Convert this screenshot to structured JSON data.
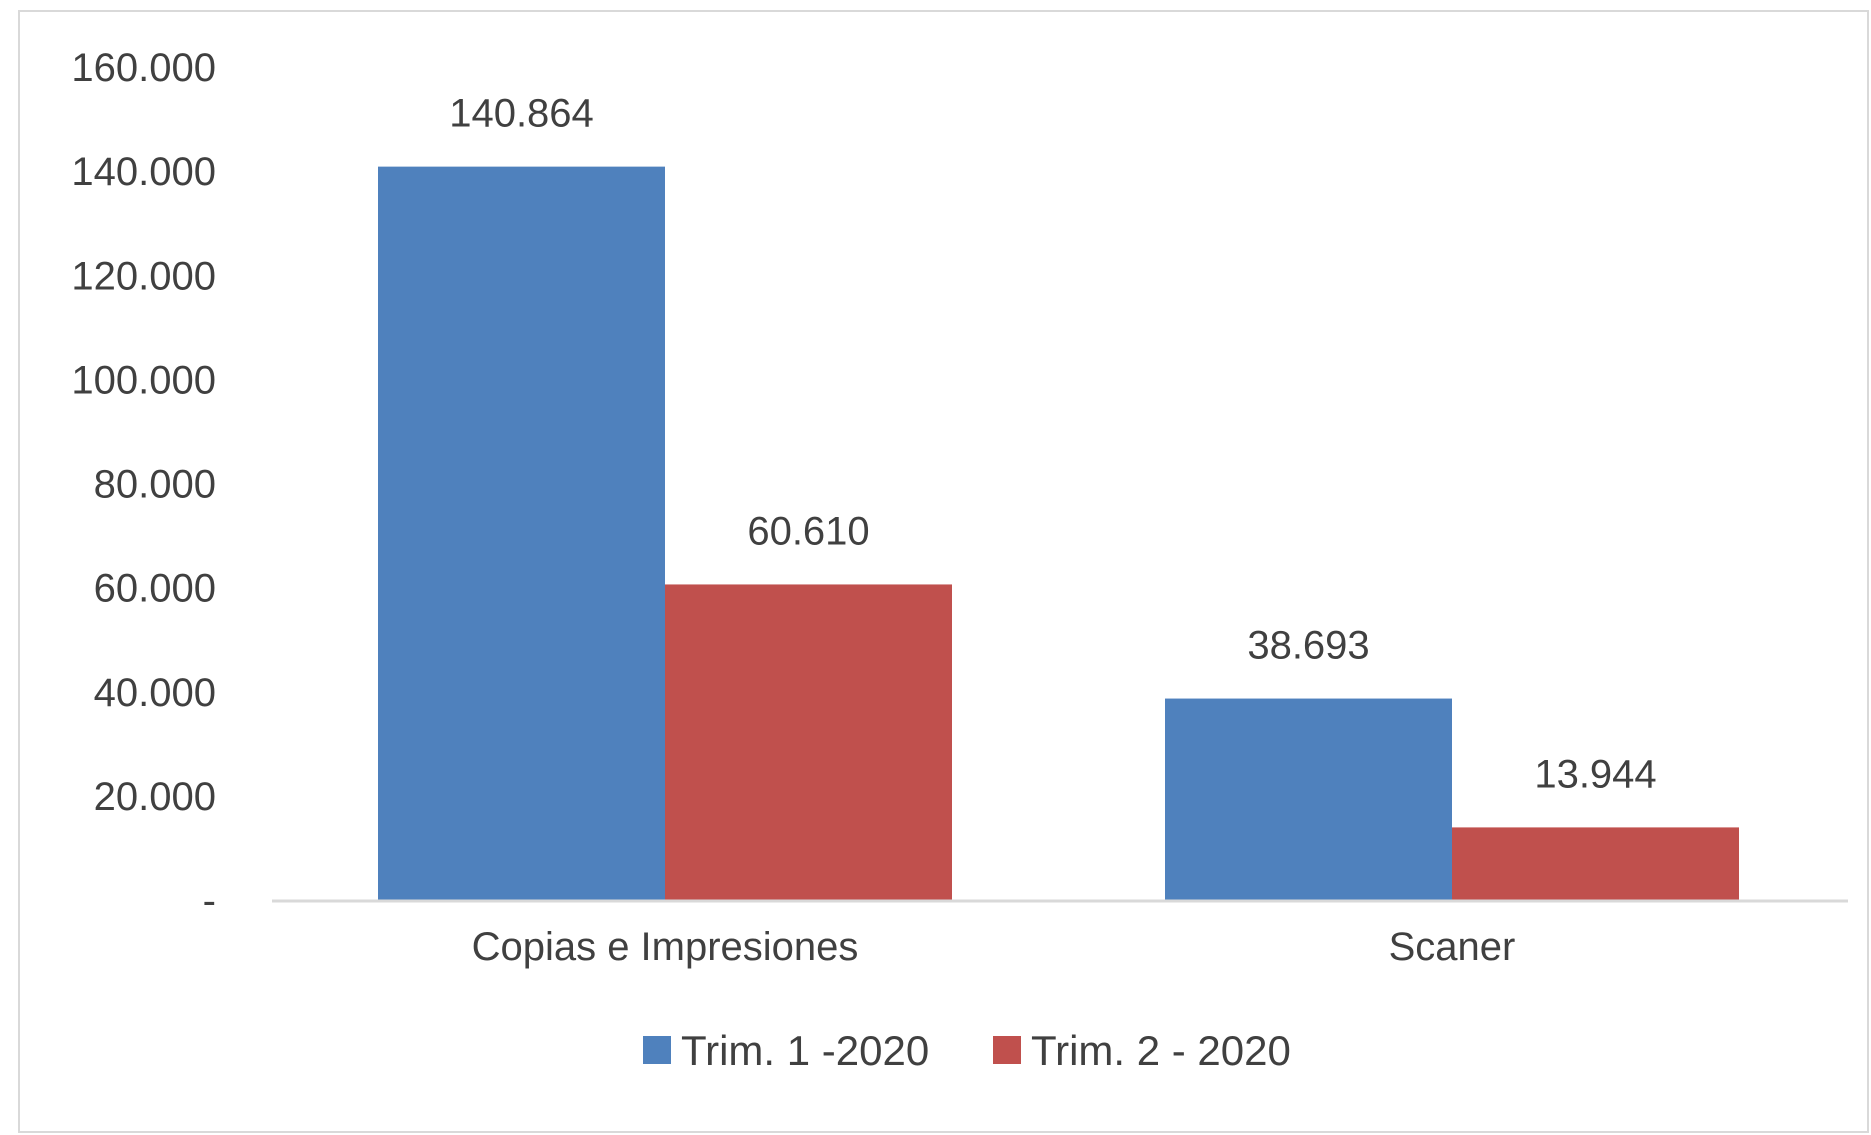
{
  "chart_data": {
    "type": "bar",
    "categories": [
      "Copias e Impresiones",
      "Scaner"
    ],
    "series": [
      {
        "name": "Trim. 1 -2020",
        "values": [
          140864,
          38693
        ],
        "labels": [
          "140.864",
          "38.693"
        ],
        "color": "#4F81BD"
      },
      {
        "name": "Trim. 2 - 2020",
        "values": [
          60610,
          13944
        ],
        "labels": [
          "60.610",
          "13.944"
        ],
        "color": "#C0504D"
      }
    ],
    "ylim": [
      0,
      160000
    ],
    "yticks": [
      {
        "value": 0,
        "label": "-"
      },
      {
        "value": 20000,
        "label": "20.000"
      },
      {
        "value": 40000,
        "label": "40.000"
      },
      {
        "value": 60000,
        "label": "60.000"
      },
      {
        "value": 80000,
        "label": "80.000"
      },
      {
        "value": 100000,
        "label": "100.000"
      },
      {
        "value": 120000,
        "label": "120.000"
      },
      {
        "value": 140000,
        "label": "140.000"
      },
      {
        "value": 160000,
        "label": "160.000"
      }
    ],
    "grid": false,
    "legend": "bottom"
  }
}
